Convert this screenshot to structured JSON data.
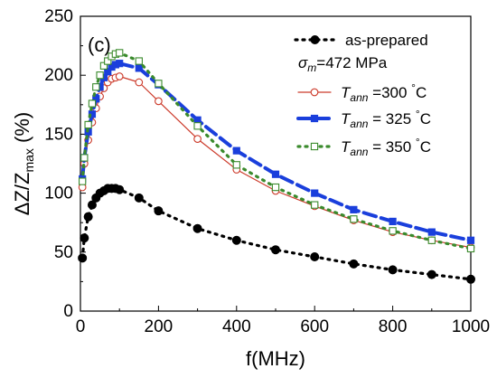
{
  "chart_data": {
    "type": "line",
    "panel_label": "(c)",
    "xlabel": "f(MHz)",
    "ylabel": "ΔZ/Zmax (%)",
    "xlim": [
      0,
      1000
    ],
    "ylim": [
      0,
      250
    ],
    "x_ticks": [
      0,
      200,
      400,
      600,
      800,
      1000
    ],
    "y_ticks": [
      0,
      50,
      100,
      150,
      200,
      250
    ],
    "grid": false,
    "legend_position": "top-right",
    "legend_note": "σm=472 MPa",
    "series": [
      {
        "name": "as-prepared",
        "color": "#000000",
        "line": "dotted",
        "marker": "filled-circle",
        "x": [
          5,
          10,
          20,
          30,
          40,
          50,
          60,
          70,
          80,
          90,
          100,
          150,
          200,
          300,
          400,
          500,
          600,
          700,
          800,
          900,
          1000
        ],
        "y": [
          45,
          62,
          80,
          90,
          96,
          100,
          102,
          104,
          104,
          104,
          103,
          96,
          85,
          70,
          60,
          52,
          46,
          40,
          35,
          31,
          27
        ]
      },
      {
        "name": "Tann =300 °C",
        "color": "#cc3a2a",
        "line": "solid",
        "marker": "open-circle",
        "x": [
          5,
          10,
          20,
          30,
          40,
          50,
          60,
          70,
          80,
          90,
          100,
          150,
          200,
          300,
          400,
          500,
          600,
          700,
          800,
          900,
          1000
        ],
        "y": [
          105,
          125,
          145,
          160,
          172,
          182,
          189,
          194,
          197,
          198,
          199,
          194,
          178,
          146,
          120,
          102,
          89,
          77,
          67,
          60,
          54
        ]
      },
      {
        "name": "Tann = 325 °C",
        "color": "#1a3fdc",
        "line": "dashed",
        "marker": "filled-square",
        "x": [
          5,
          10,
          20,
          30,
          40,
          50,
          60,
          70,
          80,
          90,
          100,
          150,
          200,
          300,
          400,
          500,
          600,
          700,
          800,
          900,
          1000
        ],
        "y": [
          112,
          130,
          152,
          167,
          180,
          190,
          198,
          203,
          207,
          209,
          210,
          206,
          192,
          162,
          136,
          116,
          100,
          86,
          76,
          67,
          60
        ]
      },
      {
        "name": "Tann = 350 °C",
        "color": "#3a8a2c",
        "line": "dotted",
        "marker": "open-square",
        "x": [
          5,
          10,
          20,
          30,
          40,
          50,
          60,
          70,
          80,
          90,
          100,
          150,
          200,
          300,
          400,
          500,
          600,
          700,
          800,
          900,
          1000
        ],
        "y": [
          110,
          130,
          158,
          176,
          190,
          200,
          208,
          212,
          216,
          218,
          219,
          212,
          193,
          157,
          124,
          105,
          90,
          78,
          68,
          60,
          53
        ]
      }
    ]
  }
}
